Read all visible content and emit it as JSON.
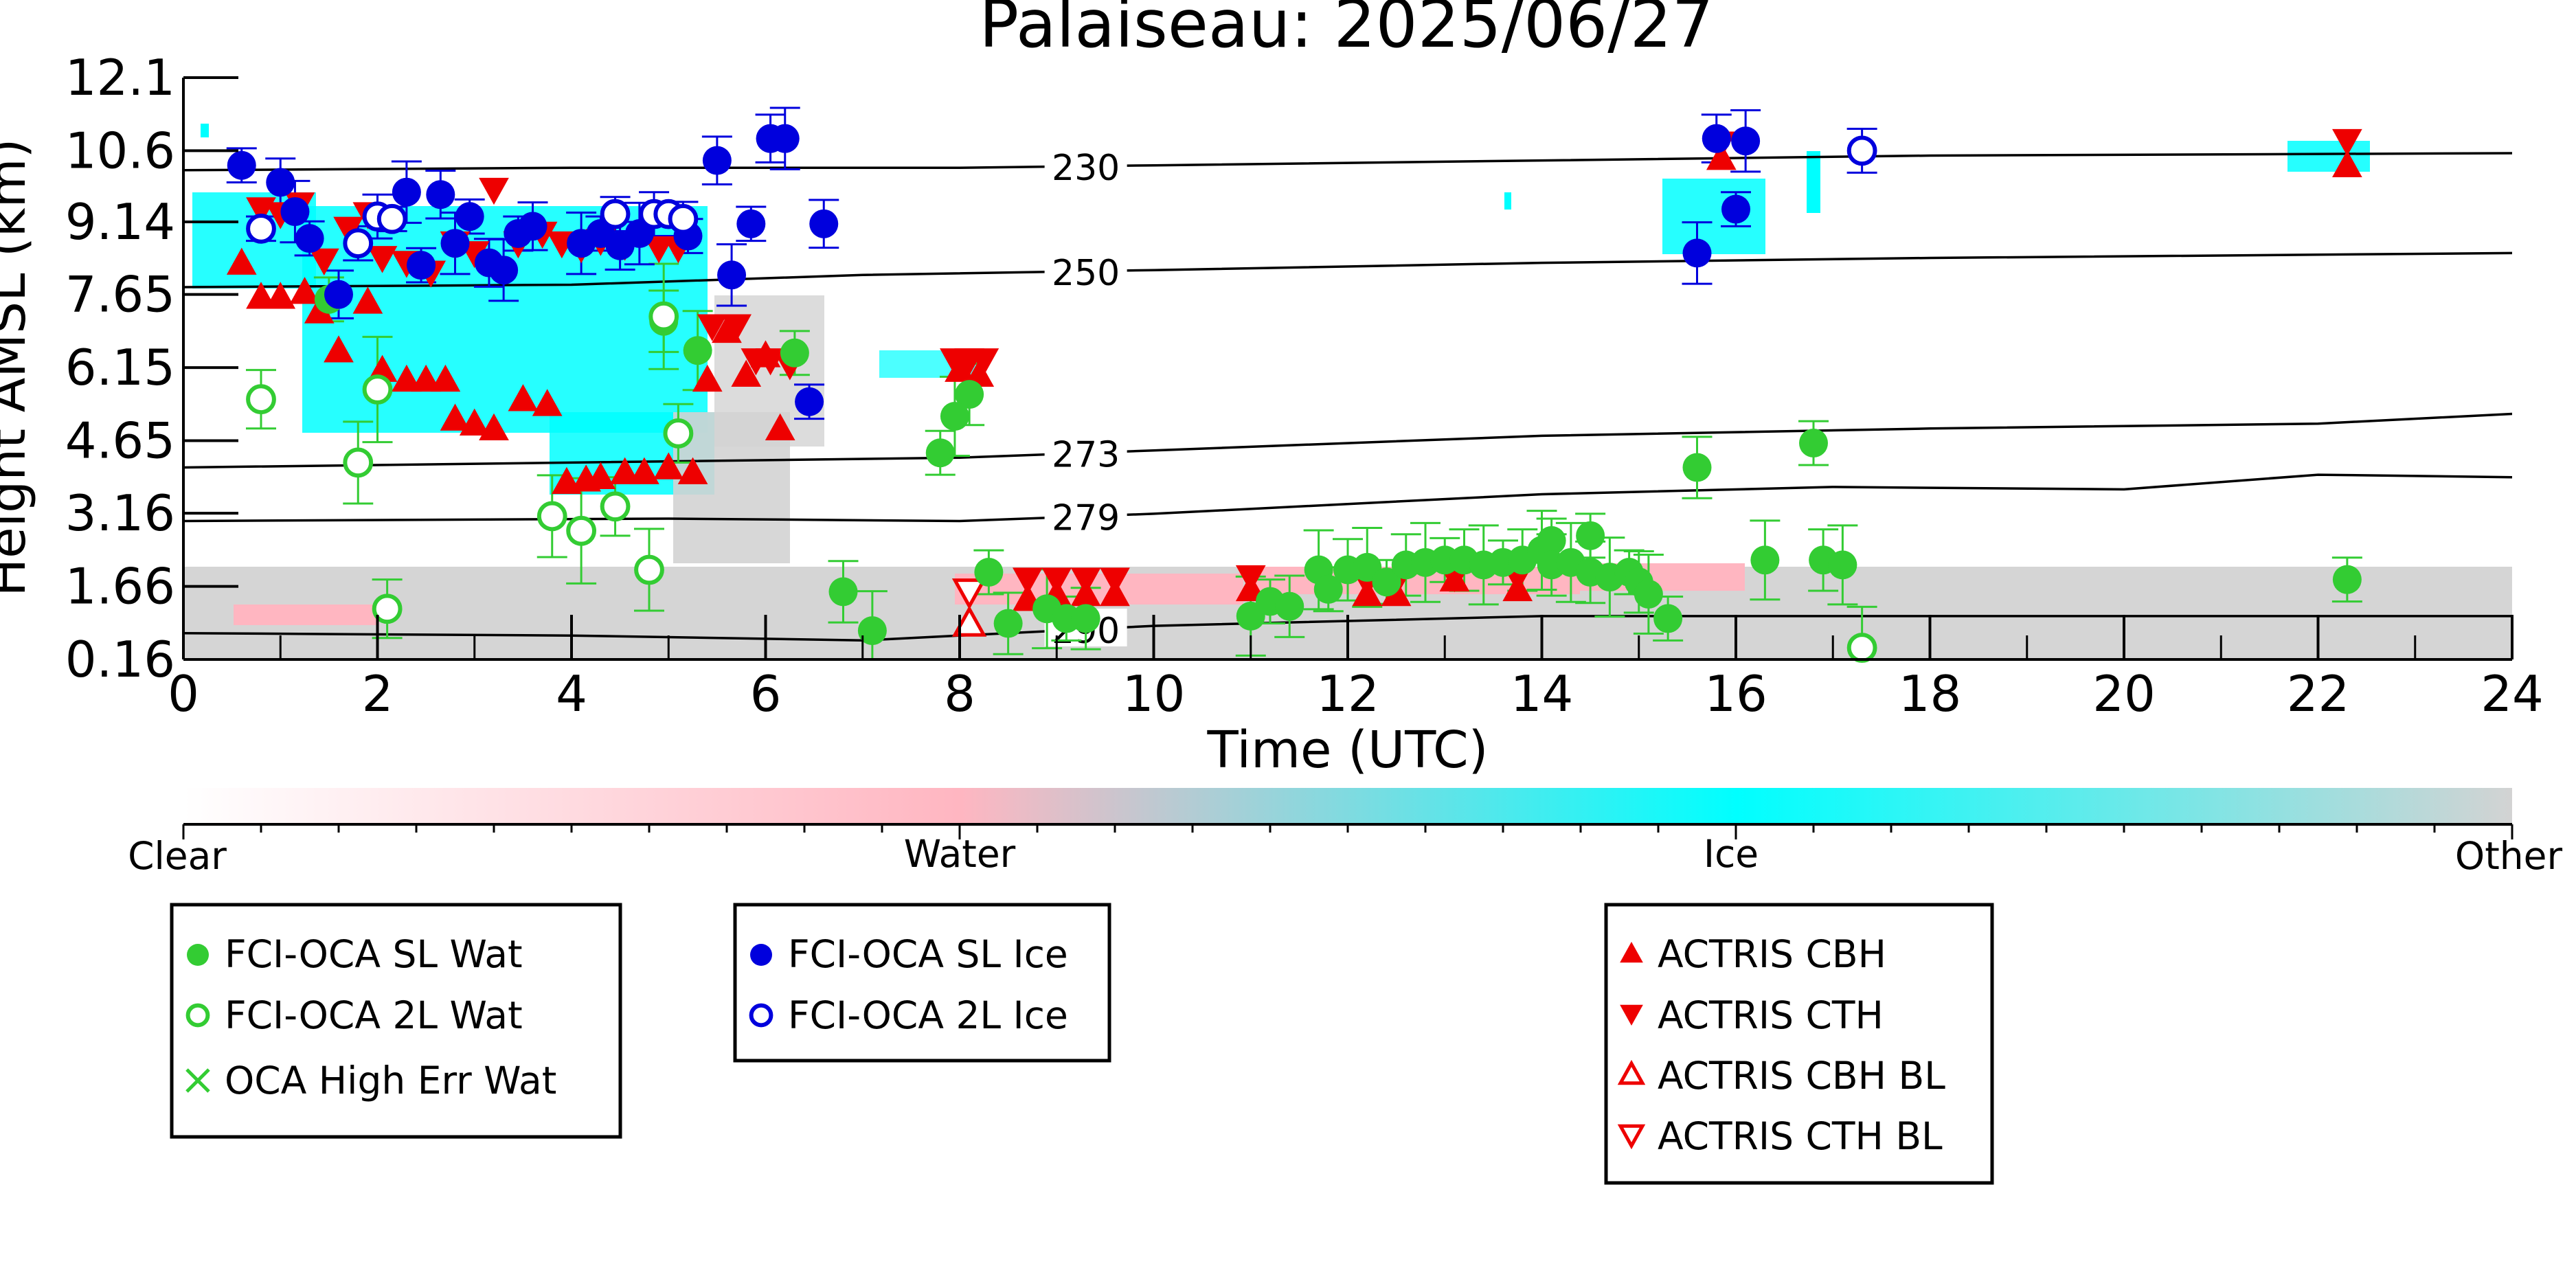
{
  "chart_data": {
    "type": "scatter",
    "title": "Palaiseau: 2025/06/27",
    "xlabel": "Time (UTC)",
    "ylabel": "Height AMSL (km)",
    "xlim": [
      0,
      24
    ],
    "ylim": [
      0.16,
      12.1
    ],
    "x_ticks": [
      0,
      2,
      4,
      6,
      8,
      10,
      12,
      14,
      16,
      18,
      20,
      22,
      24
    ],
    "y_ticks": [
      "0.16",
      "1.66",
      "3.16",
      "4.65",
      "6.15",
      "7.65",
      "9.14",
      "10.6",
      "12.1"
    ],
    "colorbar": {
      "labels": [
        "Clear",
        "Water",
        "Ice",
        "Other"
      ],
      "colors": [
        "#ffffff",
        "#ffb6c1",
        "#00ffff",
        "#d3d3d3"
      ]
    },
    "temperature_contours": [
      {
        "label": "230",
        "points": [
          [
            0,
            10.2
          ],
          [
            4,
            10.25
          ],
          [
            8,
            10.25
          ],
          [
            10,
            10.3
          ],
          [
            14,
            10.4
          ],
          [
            18,
            10.5
          ],
          [
            24,
            10.55
          ]
        ]
      },
      {
        "label": "250",
        "points": [
          [
            0,
            7.8
          ],
          [
            4,
            7.85
          ],
          [
            7,
            8.05
          ],
          [
            10,
            8.15
          ],
          [
            14,
            8.3
          ],
          [
            18,
            8.4
          ],
          [
            24,
            8.5
          ]
        ]
      },
      {
        "label": "273",
        "points": [
          [
            0,
            4.1
          ],
          [
            4,
            4.2
          ],
          [
            8,
            4.3
          ],
          [
            10,
            4.45
          ],
          [
            14,
            4.75
          ],
          [
            18,
            4.9
          ],
          [
            22,
            5.0
          ],
          [
            24,
            5.2
          ]
        ]
      },
      {
        "label": "279",
        "points": [
          [
            0,
            3.0
          ],
          [
            5,
            3.05
          ],
          [
            8,
            3.0
          ],
          [
            10,
            3.15
          ],
          [
            14,
            3.55
          ],
          [
            17,
            3.7
          ],
          [
            20,
            3.65
          ],
          [
            22,
            3.95
          ],
          [
            24,
            3.9
          ]
        ]
      },
      {
        "label": "290",
        "points": [
          [
            0,
            0.7
          ],
          [
            4,
            0.65
          ],
          [
            7,
            0.55
          ],
          [
            10,
            0.85
          ],
          [
            14,
            1.05
          ],
          [
            18,
            1.05
          ],
          [
            24,
            1.05
          ]
        ]
      }
    ],
    "series": [
      {
        "name": "FCI-OCA SL Wat",
        "color": "#33cc33",
        "marker": "filled-circle",
        "points": [
          [
            1.5,
            7.55
          ],
          [
            4.95,
            7.1
          ],
          [
            5.3,
            6.5
          ],
          [
            6.3,
            6.45
          ],
          [
            8.1,
            5.6
          ],
          [
            7.95,
            5.15
          ],
          [
            7.8,
            4.4
          ],
          [
            6.8,
            1.55
          ],
          [
            7.1,
            0.75
          ],
          [
            8.3,
            1.95
          ],
          [
            8.5,
            0.9
          ],
          [
            8.9,
            1.2
          ],
          [
            9.1,
            1.0
          ],
          [
            9.3,
            1.0
          ],
          [
            11.0,
            1.05
          ],
          [
            11.2,
            1.35
          ],
          [
            11.4,
            1.25
          ],
          [
            11.7,
            2.0
          ],
          [
            11.8,
            1.6
          ],
          [
            12.0,
            2.0
          ],
          [
            12.2,
            2.05
          ],
          [
            12.4,
            1.75
          ],
          [
            12.6,
            2.1
          ],
          [
            12.8,
            2.15
          ],
          [
            13.0,
            2.2
          ],
          [
            13.2,
            2.2
          ],
          [
            13.4,
            2.1
          ],
          [
            13.6,
            2.15
          ],
          [
            13.8,
            2.2
          ],
          [
            14.0,
            2.4
          ],
          [
            14.1,
            2.6
          ],
          [
            14.1,
            2.1
          ],
          [
            14.3,
            2.15
          ],
          [
            14.5,
            2.7
          ],
          [
            14.5,
            1.95
          ],
          [
            14.7,
            1.85
          ],
          [
            14.9,
            1.95
          ],
          [
            15.0,
            1.75
          ],
          [
            15.1,
            1.5
          ],
          [
            15.3,
            1.0
          ],
          [
            15.6,
            4.1
          ],
          [
            16.3,
            2.2
          ],
          [
            16.8,
            4.6
          ],
          [
            16.9,
            2.2
          ],
          [
            17.1,
            2.1
          ],
          [
            22.3,
            1.8
          ]
        ]
      },
      {
        "name": "FCI-OCA 2L Wat",
        "color": "#33cc33",
        "marker": "open-circle",
        "points": [
          [
            0.8,
            5.5
          ],
          [
            1.8,
            4.2
          ],
          [
            2.0,
            5.7
          ],
          [
            2.1,
            1.2
          ],
          [
            3.8,
            3.1
          ],
          [
            4.1,
            2.8
          ],
          [
            4.45,
            3.3
          ],
          [
            4.8,
            2.0
          ],
          [
            4.95,
            7.2
          ],
          [
            5.1,
            4.8
          ],
          [
            17.3,
            0.4
          ]
        ]
      },
      {
        "name": "OCA High Err Wat",
        "color": "#33cc33",
        "marker": "x",
        "points": []
      },
      {
        "name": "FCI-OCA SL Ice",
        "color": "#0000dd",
        "marker": "filled-circle",
        "points": [
          [
            0.6,
            10.3
          ],
          [
            1.0,
            9.95
          ],
          [
            1.15,
            9.35
          ],
          [
            1.3,
            8.8
          ],
          [
            1.6,
            7.65
          ],
          [
            2.3,
            9.75
          ],
          [
            2.45,
            8.25
          ],
          [
            2.65,
            9.7
          ],
          [
            2.8,
            8.7
          ],
          [
            2.95,
            9.25
          ],
          [
            3.15,
            8.3
          ],
          [
            3.3,
            8.15
          ],
          [
            3.45,
            8.9
          ],
          [
            3.6,
            9.05
          ],
          [
            4.1,
            8.7
          ],
          [
            4.3,
            8.9
          ],
          [
            4.5,
            8.65
          ],
          [
            4.7,
            8.9
          ],
          [
            5.2,
            8.85
          ],
          [
            5.5,
            10.4
          ],
          [
            5.65,
            8.05
          ],
          [
            5.85,
            9.1
          ],
          [
            6.05,
            10.85
          ],
          [
            6.2,
            10.85
          ],
          [
            6.45,
            5.45
          ],
          [
            6.6,
            9.1
          ],
          [
            15.6,
            8.5
          ],
          [
            16.0,
            9.4
          ],
          [
            15.8,
            10.85
          ],
          [
            16.1,
            10.8
          ]
        ]
      },
      {
        "name": "FCI-OCA 2L Ice",
        "color": "#0000dd",
        "marker": "open-circle",
        "points": [
          [
            0.8,
            9.0
          ],
          [
            1.8,
            8.7
          ],
          [
            2.0,
            9.25
          ],
          [
            2.15,
            9.2
          ],
          [
            4.45,
            9.3
          ],
          [
            4.85,
            9.3
          ],
          [
            5.0,
            9.3
          ],
          [
            5.15,
            9.2
          ],
          [
            17.3,
            10.6
          ]
        ]
      },
      {
        "name": "ACTRIS CBH",
        "color": "#ee0000",
        "marker": "filled-triangle-up",
        "points": [
          [
            0.6,
            8.3
          ],
          [
            0.8,
            7.6
          ],
          [
            1.0,
            7.6
          ],
          [
            1.25,
            7.7
          ],
          [
            1.4,
            7.3
          ],
          [
            1.6,
            6.5
          ],
          [
            1.9,
            7.5
          ],
          [
            2.05,
            6.1
          ],
          [
            2.3,
            5.9
          ],
          [
            2.5,
            5.9
          ],
          [
            2.7,
            5.9
          ],
          [
            2.8,
            5.1
          ],
          [
            3.0,
            5.0
          ],
          [
            3.2,
            4.9
          ],
          [
            3.5,
            5.5
          ],
          [
            3.75,
            5.4
          ],
          [
            3.95,
            3.8
          ],
          [
            4.15,
            3.85
          ],
          [
            4.3,
            3.9
          ],
          [
            4.55,
            4.0
          ],
          [
            4.75,
            4.0
          ],
          [
            5.0,
            4.1
          ],
          [
            5.25,
            4.0
          ],
          [
            5.4,
            5.9
          ],
          [
            5.6,
            6.9
          ],
          [
            5.8,
            6.0
          ],
          [
            6.0,
            6.4
          ],
          [
            6.15,
            4.9
          ],
          [
            8.0,
            6.1
          ],
          [
            8.2,
            6.0
          ],
          [
            8.7,
            1.4
          ],
          [
            9.0,
            1.5
          ],
          [
            9.3,
            1.5
          ],
          [
            9.6,
            1.5
          ],
          [
            11.0,
            1.6
          ],
          [
            12.2,
            1.5
          ],
          [
            12.5,
            1.5
          ],
          [
            13.1,
            1.8
          ],
          [
            13.75,
            1.6
          ],
          [
            15.85,
            10.45
          ],
          [
            22.3,
            10.3
          ]
        ]
      },
      {
        "name": "ACTRIS CTH",
        "color": "#ee0000",
        "marker": "filled-triangle-down",
        "points": [
          [
            0.8,
            9.4
          ],
          [
            1.0,
            9.3
          ],
          [
            1.2,
            9.5
          ],
          [
            1.45,
            8.35
          ],
          [
            1.7,
            9.0
          ],
          [
            1.9,
            9.3
          ],
          [
            2.05,
            8.4
          ],
          [
            2.3,
            8.3
          ],
          [
            2.55,
            8.1
          ],
          [
            2.8,
            8.7
          ],
          [
            3.0,
            8.5
          ],
          [
            3.2,
            9.8
          ],
          [
            3.45,
            8.7
          ],
          [
            3.7,
            8.9
          ],
          [
            3.9,
            8.7
          ],
          [
            4.1,
            8.6
          ],
          [
            4.3,
            8.75
          ],
          [
            4.55,
            8.65
          ],
          [
            4.9,
            8.6
          ],
          [
            5.1,
            8.6
          ],
          [
            5.45,
            7.0
          ],
          [
            5.7,
            7.0
          ],
          [
            5.9,
            6.3
          ],
          [
            6.05,
            6.3
          ],
          [
            6.25,
            6.2
          ],
          [
            7.95,
            6.3
          ],
          [
            8.1,
            6.3
          ],
          [
            8.25,
            6.3
          ],
          [
            8.7,
            1.8
          ],
          [
            9.0,
            1.8
          ],
          [
            9.3,
            1.8
          ],
          [
            9.6,
            1.8
          ],
          [
            11.0,
            1.85
          ],
          [
            12.2,
            1.75
          ],
          [
            12.5,
            1.75
          ],
          [
            13.1,
            1.85
          ],
          [
            13.75,
            1.85
          ],
          [
            15.85,
            10.75
          ],
          [
            22.3,
            10.8
          ]
        ]
      },
      {
        "name": "ACTRIS CBH BL",
        "color": "#ee0000",
        "marker": "open-triangle-up",
        "points": [
          [
            8.1,
            0.9
          ]
        ]
      },
      {
        "name": "ACTRIS CTH BL",
        "color": "#ee0000",
        "marker": "open-triangle-down",
        "points": [
          [
            8.1,
            1.55
          ]
        ]
      }
    ]
  }
}
